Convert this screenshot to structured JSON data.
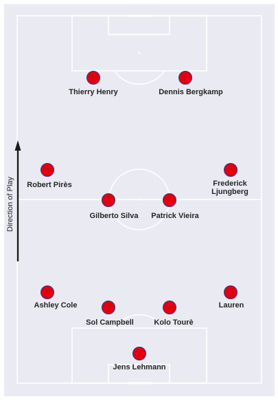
{
  "colors": {
    "pitch_background": "#eaeaf2",
    "pitch_lines": "#ffffff",
    "player_fill": "#e0000f",
    "player_stroke": "#2b3a8c",
    "text": "#262626",
    "arrow": "#1a1a1a"
  },
  "direction_label": "Direction of Play",
  "players": [
    {
      "id": "jens-lehmann",
      "name_lines": [
        "Jens Lehmann"
      ]
    },
    {
      "id": "sol-campbell",
      "name_lines": [
        "Sol Campbell"
      ]
    },
    {
      "id": "kolo-toure",
      "name_lines": [
        "Kolo Tourè"
      ]
    },
    {
      "id": "ashley-cole",
      "name_lines": [
        "Ashley Cole"
      ]
    },
    {
      "id": "lauren",
      "name_lines": [
        "Lauren"
      ]
    },
    {
      "id": "gilberto-silva",
      "name_lines": [
        "Gilberto Silva"
      ]
    },
    {
      "id": "patrick-vieira",
      "name_lines": [
        "Patrick Vieira"
      ]
    },
    {
      "id": "robert-pires",
      "name_lines": [
        "Robert Pirès"
      ]
    },
    {
      "id": "frederick-ljungberg",
      "name_lines": [
        "Frederick",
        "Ljungberg"
      ]
    },
    {
      "id": "thierry-henry",
      "name_lines": [
        "Thierry Henry"
      ]
    },
    {
      "id": "dennis-bergkamp",
      "name_lines": [
        "Dennis Bergkamp"
      ]
    }
  ]
}
